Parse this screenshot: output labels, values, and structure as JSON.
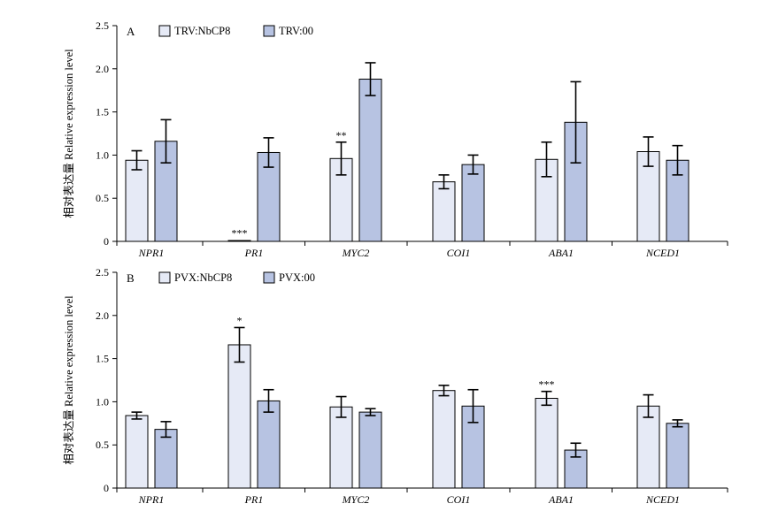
{
  "colors": {
    "light": "#e6eaf6",
    "dark": "#b7c3e2",
    "stroke": "#000000"
  },
  "chart_data": [
    {
      "type": "bar",
      "panel": "A",
      "ylabel": "相对表达量 Relative expression level",
      "ylim": [
        0,
        2.5
      ],
      "yticks": [
        0,
        0.5,
        1.0,
        1.5,
        2.0,
        2.5
      ],
      "ytick_labels": [
        "0",
        "0.5",
        "1.0",
        "1.5",
        "2.0",
        "2.5"
      ],
      "legend_position": "top-left",
      "categories": [
        "NPR1",
        "PR1",
        "MYC2",
        "COI1",
        "ABA1",
        "NCED1"
      ],
      "series": [
        {
          "name": "TRV:NbCP8",
          "values": [
            0.94,
            0.01,
            0.96,
            0.69,
            0.95,
            1.04
          ],
          "errors": [
            0.11,
            0.005,
            0.19,
            0.08,
            0.2,
            0.17
          ]
        },
        {
          "name": "TRV:00",
          "values": [
            1.16,
            1.03,
            1.88,
            0.89,
            1.38,
            0.94
          ],
          "errors": [
            0.25,
            0.17,
            0.19,
            0.11,
            0.47,
            0.17
          ]
        }
      ],
      "significance": [
        "",
        "***",
        "**",
        "",
        "",
        ""
      ]
    },
    {
      "type": "bar",
      "panel": "B",
      "ylabel": "相对表达量 Relative expression level",
      "ylim": [
        0,
        2.5
      ],
      "yticks": [
        0,
        0.5,
        1.0,
        1.5,
        2.0,
        2.5
      ],
      "ytick_labels": [
        "0",
        "0.5",
        "1.0",
        "1.5",
        "2.0",
        "2.5"
      ],
      "legend_position": "top-left",
      "categories": [
        "NPR1",
        "PR1",
        "MYC2",
        "COI1",
        "ABA1",
        "NCED1"
      ],
      "series": [
        {
          "name": "PVX:NbCP8",
          "values": [
            0.84,
            1.66,
            0.94,
            1.13,
            1.04,
            0.95
          ],
          "errors": [
            0.04,
            0.2,
            0.12,
            0.06,
            0.08,
            0.13
          ]
        },
        {
          "name": "PVX:00",
          "values": [
            0.68,
            1.01,
            0.88,
            0.95,
            0.44,
            0.75
          ],
          "errors": [
            0.09,
            0.13,
            0.04,
            0.19,
            0.08,
            0.04
          ]
        }
      ],
      "significance": [
        "",
        "*",
        "",
        "",
        "***",
        ""
      ]
    }
  ]
}
